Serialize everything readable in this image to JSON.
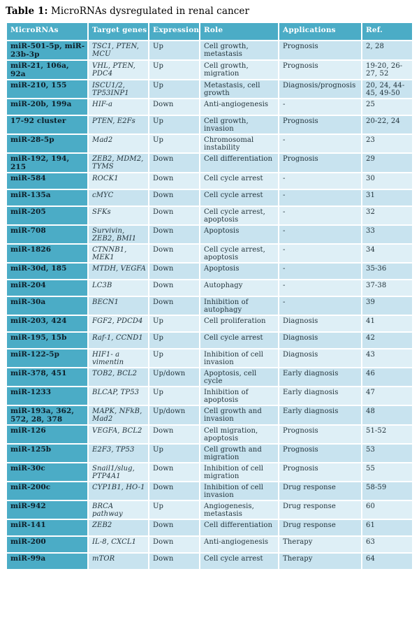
{
  "caption": {
    "label": "Table 1:",
    "text": " MicroRNAs dysregulated in renal cancer"
  },
  "colors": {
    "header_bg": "#4BACC6",
    "first_column_bg": "#4BACC6",
    "band_dark": "#C8E3EF",
    "band_light": "#DEEFF6",
    "header_text": "#ffffff",
    "first_column_text": "#0d1f29",
    "body_text": "#22333b",
    "gridline": "#ffffff"
  },
  "table": {
    "columns": [
      "MicroRNAs",
      "Target genes",
      "Expression",
      "Role",
      "Applications",
      "Ref."
    ],
    "rows": [
      {
        "mirna": "miR-501-5p, miR-23b-3p",
        "target_genes": "TSC1, PTEN, MCU",
        "expression": "Up",
        "role": "Cell growth, metastasis",
        "applications": "Prognosis",
        "ref": "2, 28"
      },
      {
        "mirna": "miR-21, 106a, 92a",
        "target_genes": "VHL, PTEN, PDC4",
        "expression": "Up",
        "role": "Cell growth, migration",
        "applications": "Prognosis",
        "ref": "19-20, 26-27, 52"
      },
      {
        "mirna": "miR-210, 155",
        "target_genes": "ISCU1/2, TP53INP1",
        "expression": "Up",
        "role": "Metastasis, cell growth",
        "applications": "Diagnosis/prognosis",
        "ref": "20, 24, 44-45, 49-50"
      },
      {
        "mirna": "miR-20b, 199a",
        "target_genes": "HIF-a",
        "expression": "Down",
        "role": "Anti-angiogenesis",
        "applications": "-",
        "ref": "25"
      },
      {
        "mirna": "17-92 cluster",
        "target_genes": "PTEN, E2Fs",
        "expression": "Up",
        "role": "Cell growth, invasion",
        "applications": "Prognosis",
        "ref": "20-22, 24"
      },
      {
        "mirna": "miR-28-5p",
        "target_genes": "Mad2",
        "expression": "Up",
        "role": "Chromosomal instability",
        "applications": "-",
        "ref": "23"
      },
      {
        "mirna": "miR-192, 194, 215",
        "target_genes": "ZEB2, MDM2, TYMS",
        "expression": "Down",
        "role": "Cell differentiation",
        "applications": "Prognosis",
        "ref": "29"
      },
      {
        "mirna": "miR-584",
        "target_genes": "ROCK1",
        "expression": "Down",
        "role": "Cell cycle arrest",
        "applications": "-",
        "ref": "30"
      },
      {
        "mirna": "miR-135a",
        "target_genes": "cMYC",
        "expression": "Down",
        "role": "Cell cycle arrest",
        "applications": "-",
        "ref": "31"
      },
      {
        "mirna": "miR-205",
        "target_genes": "SFKs",
        "expression": "Down",
        "role": "Cell cycle arrest, apoptosis",
        "applications": "-",
        "ref": "32"
      },
      {
        "mirna": "miR-708",
        "target_genes": "Survivin, ZEB2, BMI1",
        "expression": "Down",
        "role": "Apoptosis",
        "applications": "-",
        "ref": "33"
      },
      {
        "mirna": "miR-1826",
        "target_genes": "CTNNB1, MEK1",
        "expression": "Down",
        "role": "Cell cycle arrest, apoptosis",
        "applications": "-",
        "ref": "34"
      },
      {
        "mirna": "miR-30d, 185",
        "target_genes": "MTDH, VEGFA",
        "expression": "Down",
        "role": "Apoptosis",
        "applications": "-",
        "ref": "35-36"
      },
      {
        "mirna": "miR-204",
        "target_genes": "LC3B",
        "expression": "Down",
        "role": "Autophagy",
        "applications": "-",
        "ref": "37-38"
      },
      {
        "mirna": "miR-30a",
        "target_genes": "BECN1",
        "expression": "Down",
        "role": "Inhibition of autophagy",
        "applications": "-",
        "ref": "39"
      },
      {
        "mirna": "miR-203, 424",
        "target_genes": "FGF2, PDCD4",
        "expression": "Up",
        "role": "Cell proliferation",
        "applications": "Diagnosis",
        "ref": "41"
      },
      {
        "mirna": "miR-195, 15b",
        "target_genes": "Raf-1, CCND1",
        "expression": "Up",
        "role": "Cell cycle arrest",
        "applications": "Diagnosis",
        "ref": "42"
      },
      {
        "mirna": "miR-122-5p",
        "target_genes": "HIF1- a vimentin",
        "expression": "Up",
        "role": "Inhibition of cell invasion",
        "applications": "Diagnosis",
        "ref": "43"
      },
      {
        "mirna": "miR-378, 451",
        "target_genes": "TOB2, BCL2",
        "expression": "Up/down",
        "role": "Apoptosis, cell cycle",
        "applications": "Early diagnosis",
        "ref": "46"
      },
      {
        "mirna": "miR-1233",
        "target_genes": "BLCAP, TP53",
        "expression": "Up",
        "role": "Inhibition of apoptosis",
        "applications": "Early diagnosis",
        "ref": "47"
      },
      {
        "mirna": "miR-193a, 362, 572, 28, 378",
        "target_genes": "MAPK, NFkB, Mad2",
        "expression": "Up/down",
        "role": "Cell growth and invasion",
        "applications": "Early diagnosis",
        "ref": "48"
      },
      {
        "mirna": "miR-126",
        "target_genes": "VEGFA, BCL2",
        "expression": "Down",
        "role": "Cell migration, apoptosis",
        "applications": "Prognosis",
        "ref": "51-52"
      },
      {
        "mirna": "miR-125b",
        "target_genes": "E2F3, TP53",
        "expression": "Up",
        "role": "Cell growth and migration",
        "applications": "Prognosis",
        "ref": "53"
      },
      {
        "mirna": "miR-30c",
        "target_genes": "Snail1/slug, PTP4A1",
        "expression": "Down",
        "role": "Inhibition of cell migration",
        "applications": "Prognosis",
        "ref": "55"
      },
      {
        "mirna": "miR-200c",
        "target_genes": "CYP1B1, HO-1",
        "expression": "Down",
        "role": "Inhibition of cell invasion",
        "applications": "Drug response",
        "ref": "58-59"
      },
      {
        "mirna": "miR-942",
        "target_genes": "BRCA pathway",
        "expression": "Up",
        "role": "Angiogenesis, metastasis",
        "applications": "Drug response",
        "ref": "60"
      },
      {
        "mirna": "miR-141",
        "target_genes": "ZEB2",
        "expression": "Down",
        "role": "Cell differentiation",
        "applications": "Drug response",
        "ref": "61"
      },
      {
        "mirna": "miR-200",
        "target_genes": "IL-8,  CXCL1",
        "expression": "Down",
        "role": "Anti-angiogenesis",
        "applications": "Therapy",
        "ref": "63"
      },
      {
        "mirna": "miR-99a",
        "target_genes": "mTOR",
        "expression": "Down",
        "role": "Cell cycle arrest",
        "applications": "Therapy",
        "ref": "64"
      }
    ]
  }
}
